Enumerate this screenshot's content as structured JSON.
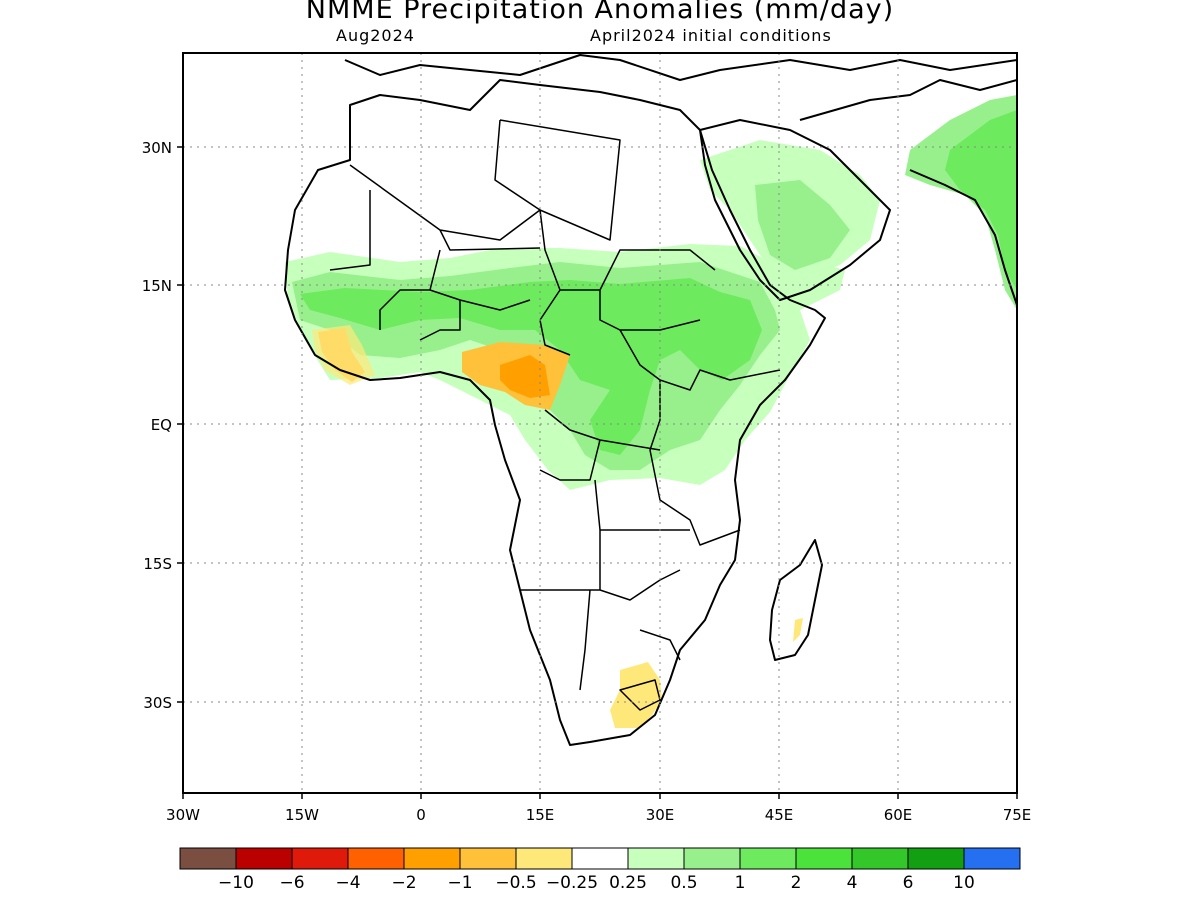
{
  "map": {
    "title": "NMME Precipitation Anomalies (mm/day)",
    "valid_month": "Aug2024",
    "initial_conditions": "April2024 initial conditions",
    "lat_labels": [
      "30N",
      "15N",
      "EQ",
      "15S",
      "30S"
    ],
    "lon_labels": [
      "30W",
      "15W",
      "0",
      "15E",
      "30E",
      "45E",
      "60E",
      "75E"
    ],
    "extent": {
      "lon": [
        -30,
        75
      ],
      "lat": [
        -40,
        40
      ]
    },
    "grid": "dotted"
  },
  "legend": {
    "labels": [
      "−10",
      "−6",
      "−4",
      "−2",
      "−1",
      "−0.5",
      "−0.25",
      "0.25",
      "0.5",
      "1",
      "2",
      "4",
      "6",
      "10"
    ],
    "colors": [
      "#7a4f42",
      "#bb0000",
      "#e01a0a",
      "#ff6000",
      "#ff9f00",
      "#ffc03a",
      "#ffe87a",
      "#ffffff",
      "#c7ffbd",
      "#97f08c",
      "#6dea5e",
      "#4ce23c",
      "#34c72a",
      "#12a012",
      "#2470f0"
    ]
  }
}
